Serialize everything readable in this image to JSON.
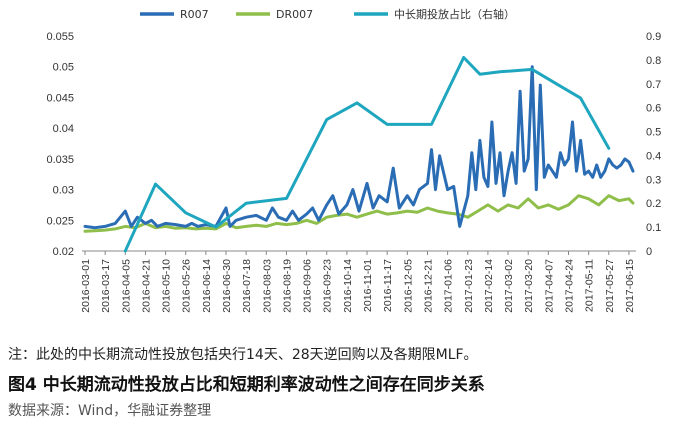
{
  "note": "注：此处的中长期流动性投放包括央行14天、28天逆回购以及各期限MLF。",
  "figure_title": "图4  中长期流动性投放占比和短期利率波动性之间存在同步关系",
  "source": "数据来源：Wind，华融证券整理",
  "chart_data": {
    "type": "line",
    "legend": [
      "R007",
      "DR007",
      "中长期投放占比（右轴）"
    ],
    "legend_position": "top",
    "colors": {
      "R007": "#2a6db5",
      "DR007": "#8fbf4a",
      "ratio": "#1fa6bf"
    },
    "left_axis": {
      "min": 0.02,
      "max": 0.055,
      "step": 0.005,
      "ticks": [
        "0.02",
        "0.025",
        "0.03",
        "0.035",
        "0.04",
        "0.045",
        "0.05",
        "0.055"
      ]
    },
    "right_axis": {
      "min": 0,
      "max": 0.9,
      "step": 0.1,
      "ticks": [
        "0",
        "0.1",
        "0.2",
        "0.3",
        "0.4",
        "0.5",
        "0.6",
        "0.7",
        "0.8",
        "0.9"
      ]
    },
    "x_labels": [
      "2016-03-01",
      "2016-03-17",
      "2016-04-05",
      "2016-04-21",
      "2016-05-10",
      "2016-05-26",
      "2016-06-14",
      "2016-06-30",
      "2016-07-18",
      "2016-08-03",
      "2016-08-19",
      "2016-09-06",
      "2016-09-23",
      "2016-10-14",
      "2016-11-01",
      "2016-11-17",
      "2016-12-05",
      "2016-12-21",
      "2017-01-06",
      "2017-01-23",
      "2017-02-14",
      "2017-03-02",
      "2017-03-20",
      "2017-04-07",
      "2017-04-24",
      "2017-05-11",
      "2017-05-27",
      "2017-06-15"
    ],
    "series": [
      {
        "name": "R007",
        "axis": "left",
        "x_index": [
          0,
          0.5,
          1,
          1.5,
          2,
          2.3,
          2.6,
          3,
          3.3,
          3.6,
          4,
          4.5,
          5,
          5.3,
          5.6,
          6,
          6.5,
          7,
          7.2,
          7.5,
          8,
          8.5,
          9,
          9.3,
          9.6,
          10,
          10.3,
          10.6,
          11,
          11.3,
          11.6,
          12,
          12.3,
          12.6,
          13,
          13.3,
          13.6,
          14,
          14.3,
          14.6,
          15,
          15.3,
          15.6,
          16,
          16.3,
          16.6,
          17,
          17.2,
          17.4,
          17.6,
          18,
          18.3,
          18.6,
          19,
          19.2,
          19.4,
          19.6,
          19.8,
          20,
          20.2,
          20.4,
          20.6,
          20.8,
          21,
          21.2,
          21.4,
          21.6,
          21.8,
          22,
          22.2,
          22.4,
          22.6,
          22.8,
          23,
          23.2,
          23.4,
          23.6,
          23.8,
          24,
          24.2,
          24.4,
          24.6,
          24.8,
          25,
          25.2,
          25.4,
          25.6,
          25.8,
          26,
          26.2,
          26.4,
          26.6,
          26.8,
          27,
          27.2
        ],
        "values": [
          0.024,
          0.0238,
          0.024,
          0.0245,
          0.0265,
          0.024,
          0.0255,
          0.0245,
          0.025,
          0.024,
          0.0245,
          0.0243,
          0.024,
          0.0245,
          0.024,
          0.0243,
          0.024,
          0.027,
          0.024,
          0.025,
          0.0255,
          0.0258,
          0.025,
          0.027,
          0.0255,
          0.025,
          0.0265,
          0.025,
          0.026,
          0.027,
          0.025,
          0.0275,
          0.029,
          0.026,
          0.0275,
          0.03,
          0.0265,
          0.031,
          0.027,
          0.029,
          0.028,
          0.0335,
          0.027,
          0.029,
          0.0275,
          0.03,
          0.031,
          0.0365,
          0.03,
          0.0355,
          0.03,
          0.0305,
          0.024,
          0.029,
          0.036,
          0.03,
          0.038,
          0.032,
          0.0305,
          0.041,
          0.031,
          0.036,
          0.029,
          0.033,
          0.036,
          0.031,
          0.046,
          0.033,
          0.035,
          0.05,
          0.03,
          0.047,
          0.032,
          0.034,
          0.033,
          0.032,
          0.036,
          0.034,
          0.035,
          0.041,
          0.033,
          0.038,
          0.0325,
          0.033,
          0.032,
          0.034,
          0.032,
          0.033,
          0.035,
          0.034,
          0.0335,
          0.034,
          0.035,
          0.0345,
          0.033
        ]
      },
      {
        "name": "DR007",
        "axis": "left",
        "x_index": [
          0,
          0.5,
          1,
          1.5,
          2,
          2.5,
          3,
          3.5,
          4,
          4.5,
          5,
          5.5,
          6,
          6.5,
          7,
          7.5,
          8,
          8.5,
          9,
          9.5,
          10,
          10.5,
          11,
          11.5,
          12,
          12.5,
          13,
          13.5,
          14,
          14.5,
          15,
          15.5,
          16,
          16.5,
          17,
          17.5,
          18,
          18.5,
          19,
          19.5,
          20,
          20.5,
          21,
          21.5,
          22,
          22.5,
          23,
          23.5,
          24,
          24.5,
          25,
          25.5,
          26,
          26.5,
          27,
          27.2
        ],
        "values": [
          0.0232,
          0.0233,
          0.0234,
          0.0236,
          0.024,
          0.0238,
          0.0245,
          0.0238,
          0.024,
          0.0237,
          0.0238,
          0.0236,
          0.0237,
          0.0236,
          0.0245,
          0.0238,
          0.024,
          0.0242,
          0.024,
          0.0245,
          0.0243,
          0.0245,
          0.025,
          0.0245,
          0.0255,
          0.0258,
          0.026,
          0.0255,
          0.026,
          0.0265,
          0.026,
          0.0262,
          0.0265,
          0.0263,
          0.027,
          0.0265,
          0.0262,
          0.026,
          0.0255,
          0.0265,
          0.0275,
          0.0265,
          0.0275,
          0.027,
          0.0285,
          0.027,
          0.0275,
          0.0268,
          0.0275,
          0.029,
          0.0285,
          0.0275,
          0.029,
          0.0282,
          0.0285,
          0.0278
        ]
      },
      {
        "name": "中长期投放占比（右轴）",
        "axis": "right",
        "x_index": [
          2,
          3.5,
          5,
          6.5,
          8,
          10,
          12,
          13.5,
          15,
          16,
          17.2,
          18.8,
          19.6,
          20.6,
          22.2,
          23.4,
          24.6,
          26
        ],
        "values": [
          0,
          0.28,
          0.16,
          0.1,
          0.2,
          0.22,
          0.55,
          0.62,
          0.53,
          0.53,
          0.53,
          0.81,
          0.74,
          0.75,
          0.76,
          0.7,
          0.64,
          0.43
        ]
      }
    ]
  }
}
